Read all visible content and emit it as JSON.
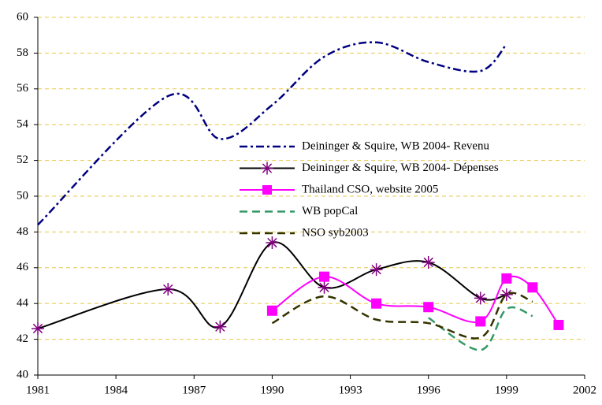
{
  "chart_data": {
    "type": "line",
    "x": [
      1981,
      1986,
      1988,
      1990,
      1992,
      1994,
      1996,
      1998,
      1999,
      2000,
      2001
    ],
    "series": [
      {
        "name": "Deininger & Squire, WB 2004- Revenu",
        "color": "#000080",
        "values": [
          48.4,
          55.6,
          53.2,
          55.1,
          57.8,
          58.6,
          57.5,
          57.0,
          58.5,
          null,
          null
        ]
      },
      {
        "name": "Deininger & Squire, WB 2004- Dépenses",
        "color": "#000000",
        "marker": "star",
        "values": [
          42.6,
          44.8,
          42.7,
          47.4,
          44.9,
          45.9,
          46.3,
          44.3,
          44.5,
          null,
          null
        ]
      },
      {
        "name": "Thailand CSO, website 2005",
        "color": "#ff00ff",
        "marker": "square",
        "values": [
          null,
          null,
          null,
          43.6,
          45.5,
          44.0,
          43.8,
          43.0,
          45.4,
          44.9,
          42.8
        ]
      },
      {
        "name": "WB popCal",
        "color": "#339966",
        "values": [
          null,
          null,
          null,
          null,
          null,
          null,
          43.2,
          41.4,
          43.7,
          43.3,
          null
        ]
      },
      {
        "name": "NSO syb2003",
        "color": "#333300",
        "values": [
          null,
          null,
          null,
          42.9,
          44.4,
          43.1,
          42.9,
          42.1,
          44.5,
          44.1,
          null
        ]
      }
    ],
    "xlim": [
      1981,
      2002
    ],
    "xticks": [
      1981,
      1984,
      1987,
      1990,
      1993,
      1996,
      1999,
      2002
    ],
    "ylim": [
      40,
      60
    ],
    "yticks": [
      40,
      42,
      44,
      46,
      48,
      50,
      52,
      54,
      56,
      58,
      60
    ],
    "grid": true
  }
}
